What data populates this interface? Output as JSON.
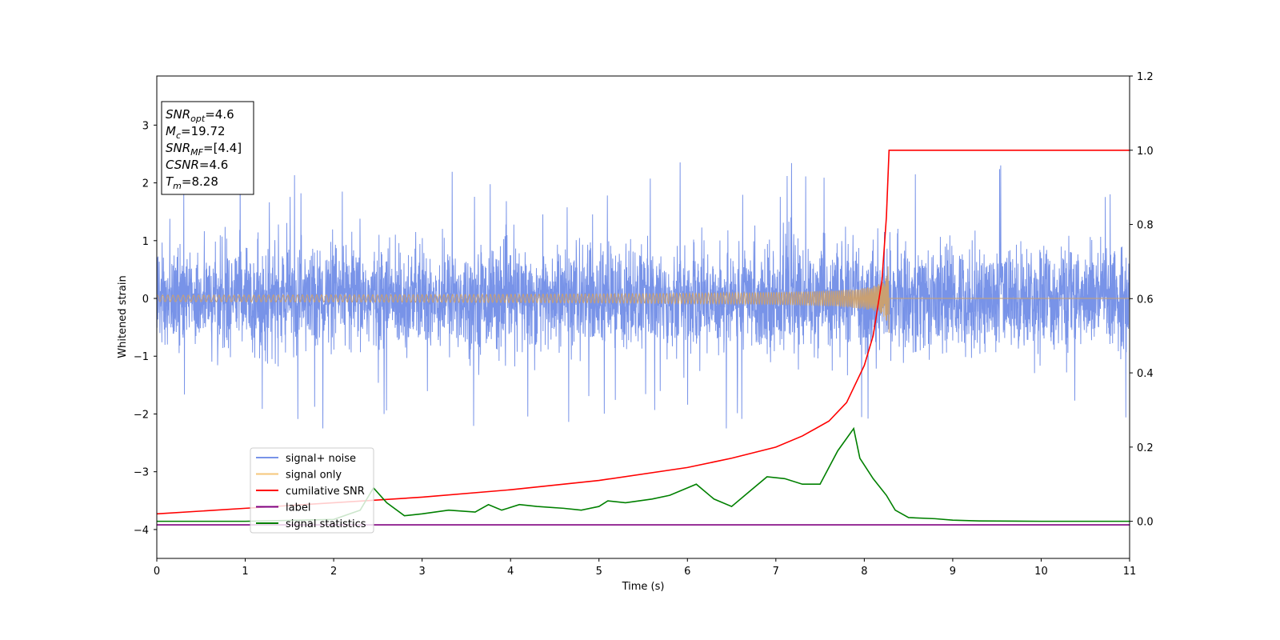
{
  "chart_data": {
    "type": "line",
    "xlabel": "Time (s)",
    "ylabel": "Whitened strain",
    "xlim": [
      0,
      11
    ],
    "ylim_left": [
      -4.5,
      3.85
    ],
    "ylim_right": [
      -0.1,
      1.2
    ],
    "x_ticks": [
      0,
      1,
      2,
      3,
      4,
      5,
      6,
      7,
      8,
      9,
      10,
      11
    ],
    "y_ticks_left": [
      -4,
      -3,
      -2,
      -1,
      0,
      1,
      2,
      3
    ],
    "y_ticks_right": [
      0.0,
      0.2,
      0.4,
      0.6,
      0.8,
      1.0,
      1.2
    ],
    "x_tick_labels": [
      "0",
      "1",
      "2",
      "3",
      "4",
      "5",
      "6",
      "7",
      "8",
      "9",
      "10",
      "11"
    ],
    "y_tick_labels_left": [
      "−4",
      "−3",
      "−2",
      "−1",
      "0",
      "1",
      "2",
      "3"
    ],
    "y_tick_labels_right": [
      "0.0",
      "0.2",
      "0.4",
      "0.6",
      "0.8",
      "1.0",
      "1.2"
    ],
    "grid": false,
    "legend_position": "lower-left",
    "info_box": {
      "lines": [
        {
          "main": "SNR",
          "sub": "opt",
          "rest": "=4.6"
        },
        {
          "main": "M",
          "sub": "c",
          "rest": "=19.72"
        },
        {
          "main": "SNR",
          "sub": "MF",
          "rest": "=[4.4]"
        },
        {
          "main": "CSNR",
          "sub": "",
          "rest": "=4.6"
        },
        {
          "main": "T",
          "sub": "m",
          "rest": "=8.28"
        }
      ]
    },
    "merger_time": 8.28,
    "series": [
      {
        "name": "signal+ noise",
        "color": "#7893e8",
        "axis": "left",
        "kind": "noise",
        "typical_amplitude": 0.8,
        "peak_range": [
          -2.25,
          2.5
        ]
      },
      {
        "name": "signal only",
        "color": "#f5c77a",
        "axis": "left",
        "kind": "chirp",
        "peak_amplitude": 0.6,
        "merger_time": 8.28
      },
      {
        "name": "cumilative SNR",
        "color": "#ff0000",
        "axis": "right",
        "x": [
          0,
          1,
          2,
          3,
          4,
          5,
          6,
          6.5,
          7,
          7.3,
          7.6,
          7.8,
          8.0,
          8.1,
          8.2,
          8.25,
          8.28,
          8.29,
          11
        ],
        "y": [
          0.02,
          0.035,
          0.05,
          0.065,
          0.085,
          0.11,
          0.145,
          0.17,
          0.2,
          0.23,
          0.27,
          0.32,
          0.42,
          0.5,
          0.65,
          0.82,
          1.0,
          1.0,
          1.0
        ]
      },
      {
        "name": "label",
        "color": "#800080",
        "axis": "left",
        "x": [
          0,
          11
        ],
        "y": [
          -3.92,
          -3.92
        ]
      },
      {
        "name": "signal statistics",
        "color": "#008000",
        "axis": "right",
        "x": [
          0,
          1,
          2,
          2.3,
          2.45,
          2.6,
          2.8,
          3.0,
          3.3,
          3.6,
          3.75,
          3.9,
          4.1,
          4.3,
          4.6,
          4.8,
          5.0,
          5.1,
          5.3,
          5.6,
          5.8,
          6.0,
          6.1,
          6.3,
          6.5,
          6.7,
          6.9,
          7.1,
          7.3,
          7.5,
          7.7,
          7.88,
          7.95,
          8.1,
          8.25,
          8.35,
          8.5,
          8.8,
          9.0,
          9.3,
          10,
          11
        ],
        "y": [
          0.0,
          0.0,
          0.005,
          0.03,
          0.09,
          0.05,
          0.015,
          0.02,
          0.03,
          0.025,
          0.045,
          0.03,
          0.045,
          0.04,
          0.035,
          0.03,
          0.04,
          0.055,
          0.05,
          0.06,
          0.07,
          0.09,
          0.1,
          0.06,
          0.04,
          0.08,
          0.12,
          0.115,
          0.1,
          0.1,
          0.19,
          0.25,
          0.17,
          0.115,
          0.07,
          0.03,
          0.01,
          0.007,
          0.003,
          0.001,
          0.0,
          0.0
        ]
      }
    ]
  }
}
